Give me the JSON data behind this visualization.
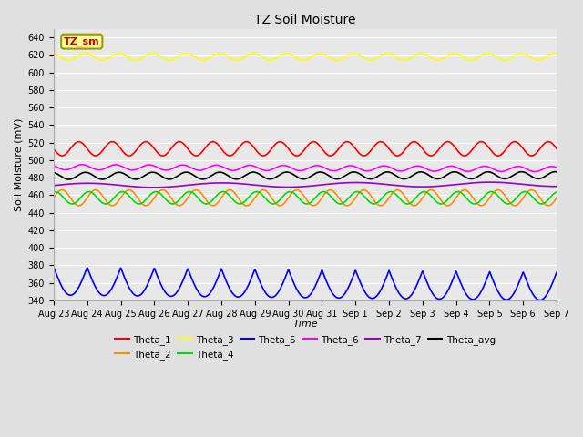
{
  "title": "TZ Soil Moisture",
  "xlabel": "Time",
  "ylabel": "Soil Moisture (mV)",
  "ylim": [
    340,
    650
  ],
  "yticks": [
    340,
    360,
    380,
    400,
    420,
    440,
    460,
    480,
    500,
    520,
    540,
    560,
    580,
    600,
    620,
    640
  ],
  "background_color": "#e0e0e0",
  "plot_bg_color": "#e8e8e8",
  "grid_color": "#ffffff",
  "date_labels": [
    "Aug 23",
    "Aug 24",
    "Aug 25",
    "Aug 26",
    "Aug 27",
    "Aug 28",
    "Aug 29",
    "Aug 30",
    "Aug 31",
    "Sep 1",
    "Sep 2",
    "Sep 3",
    "Sep 4",
    "Sep 5",
    "Sep 6",
    "Sep 7"
  ],
  "n_points": 1600,
  "series": [
    {
      "name": "Theta_1",
      "color": "#ff0000",
      "base": 513,
      "amp": 8,
      "period_days": 1.0,
      "trend": 0.0,
      "phase": 0.5,
      "type": "sin"
    },
    {
      "name": "Theta_2",
      "color": "#ff8c00",
      "base": 457,
      "amp": 9,
      "period_days": 1.0,
      "trend": 0.0,
      "phase": 0.0,
      "type": "sin"
    },
    {
      "name": "Theta_3",
      "color": "#ffff00",
      "base": 618,
      "amp": 4,
      "period_days": 1.0,
      "trend": 0.0,
      "phase": 0.3,
      "type": "sin"
    },
    {
      "name": "Theta_4",
      "color": "#00dd00",
      "base": 457,
      "amp": 7,
      "period_days": 1.0,
      "trend": 0.0,
      "phase": 0.2,
      "type": "sin"
    },
    {
      "name": "Theta_5",
      "color": "#0000ff",
      "base": 373,
      "amp": 16,
      "period_days": 1.0,
      "trend": -0.4,
      "phase": 0.0,
      "type": "abs_sin"
    },
    {
      "name": "Theta_6",
      "color": "#ff00ff",
      "base": 492,
      "amp": 3,
      "period_days": 1.0,
      "trend": -0.15,
      "phase": 0.4,
      "type": "sin"
    },
    {
      "name": "Theta_7",
      "color": "#9900cc",
      "base": 471,
      "amp": 2.5,
      "period_days": 4.0,
      "trend": 0.1,
      "phase": 0.0,
      "type": "sin"
    },
    {
      "name": "Theta_avg",
      "color": "#000000",
      "base": 482,
      "amp": 4,
      "period_days": 1.0,
      "trend": 0.05,
      "phase": 0.3,
      "type": "sin"
    }
  ],
  "label_box": {
    "text": "TZ_sm",
    "facecolor": "#ffff99",
    "edgecolor": "#999900",
    "textcolor": "#cc0000"
  },
  "legend_order": [
    "Theta_1",
    "Theta_2",
    "Theta_3",
    "Theta_4",
    "Theta_5",
    "Theta_6",
    "Theta_7",
    "Theta_avg"
  ]
}
